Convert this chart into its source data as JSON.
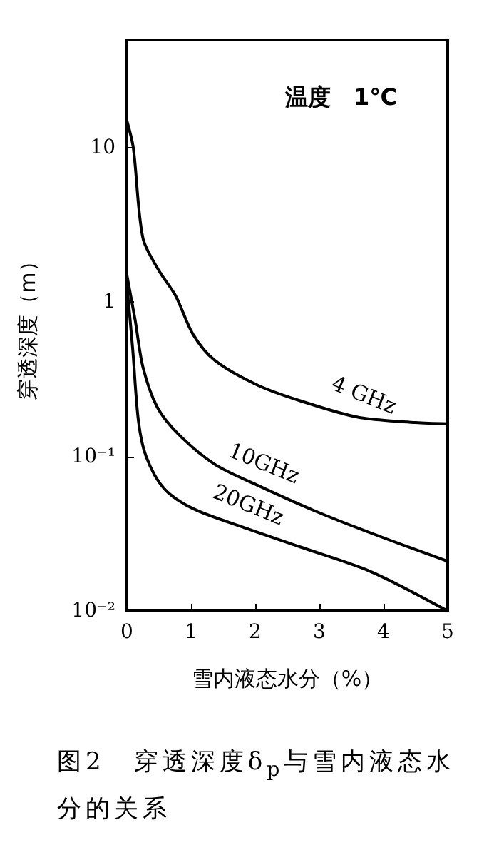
{
  "chart_data": {
    "type": "line",
    "title": "图2　穿透深度δ$_{p}$与雪内液态水分的关系",
    "xlabel": "雪内液态水分（%）",
    "ylabel": "穿透深度（m）",
    "annotations": [
      "温度　1℃"
    ],
    "log": "y",
    "grid": false,
    "legend": false,
    "marker": "none",
    "line_style": "solid",
    "xlim": [
      0,
      5
    ],
    "xticks": [
      0,
      1,
      2,
      3,
      4,
      5
    ],
    "ylim": [
      0.01,
      50
    ],
    "yticks": [
      {
        "value": 0.01,
        "label": "10⁻²"
      },
      {
        "value": 0.1,
        "label": "10⁻¹"
      },
      1,
      10
    ],
    "series": [
      {
        "name": "4 GHz",
        "color": "#000000",
        "x": [
          0,
          0.1,
          0.25,
          0.5,
          0.76,
          1.03,
          1.37,
          2.04,
          2.7,
          3.6,
          4.5,
          5
        ],
        "values": [
          15,
          10,
          2.6,
          1.6,
          1.1,
          0.62,
          0.42,
          0.29,
          0.23,
          0.18,
          0.166,
          0.163
        ]
      },
      {
        "name": "10GHz",
        "color": "#000000",
        "x": [
          0,
          0.13,
          0.25,
          0.47,
          0.8,
          1.37,
          2.04,
          2.9,
          3.8,
          5
        ],
        "values": [
          1.5,
          0.76,
          0.38,
          0.21,
          0.14,
          0.089,
          0.065,
          0.045,
          0.032,
          0.021
        ]
      },
      {
        "name": "20GHz",
        "color": "#000000",
        "x": [
          0,
          0.09,
          0.18,
          0.3,
          0.58,
          1.03,
          1.8,
          2.7,
          3.8,
          5
        ],
        "values": [
          1.3,
          0.5,
          0.17,
          0.1,
          0.062,
          0.046,
          0.035,
          0.026,
          0.018,
          0.01
        ]
      }
    ]
  }
}
